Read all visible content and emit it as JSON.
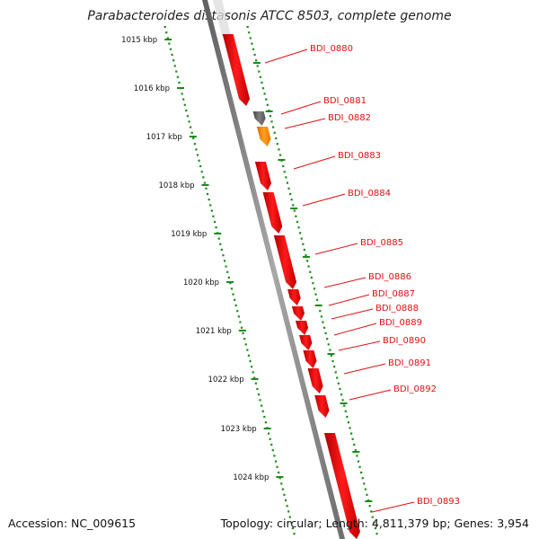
{
  "title": "Parabacteroides distasonis ATCC 8503, complete genome",
  "footer": {
    "accession": "Accession: NC_009615",
    "stats": "Topology: circular; Length: 4,811,379 bp; Genes: 3,954"
  },
  "colors": {
    "gene_forward": "#ff0000",
    "gene_highlight": "#ff8c00",
    "gene_gray": "#707070",
    "backbone": "#7a7a7a",
    "tick": "#1a8a1a",
    "label": "#e01010"
  },
  "scale_labels": [
    "1015 kbp",
    "1016 kbp",
    "1017 kbp",
    "1018 kbp",
    "1019 kbp",
    "1020 kbp",
    "1021 kbp",
    "1022 kbp",
    "1023 kbp",
    "1024 kbp"
  ],
  "genes": [
    {
      "name": "BDI_0880",
      "color": "red",
      "track": "inner"
    },
    {
      "name": "BDI_0881",
      "color": "gray",
      "track": "outer"
    },
    {
      "name": "BDI_0882",
      "color": "orange",
      "track": "outer"
    },
    {
      "name": "BDI_0883",
      "color": "red",
      "track": "inner"
    },
    {
      "name": "BDI_0884",
      "color": "red",
      "track": "inner"
    },
    {
      "name": "BDI_0885",
      "color": "red",
      "track": "inner"
    },
    {
      "name": "BDI_0886",
      "color": "red",
      "track": "inner"
    },
    {
      "name": "BDI_0887",
      "color": "red",
      "track": "inner"
    },
    {
      "name": "BDI_0888",
      "color": "red",
      "track": "inner"
    },
    {
      "name": "BDI_0889",
      "color": "red",
      "track": "inner"
    },
    {
      "name": "BDI_0890",
      "color": "red",
      "track": "inner"
    },
    {
      "name": "BDI_0891",
      "color": "red",
      "track": "inner"
    },
    {
      "name": "BDI_0892",
      "color": "red",
      "track": "inner"
    },
    {
      "name": "BDI_0893",
      "color": "red",
      "track": "inner"
    }
  ]
}
